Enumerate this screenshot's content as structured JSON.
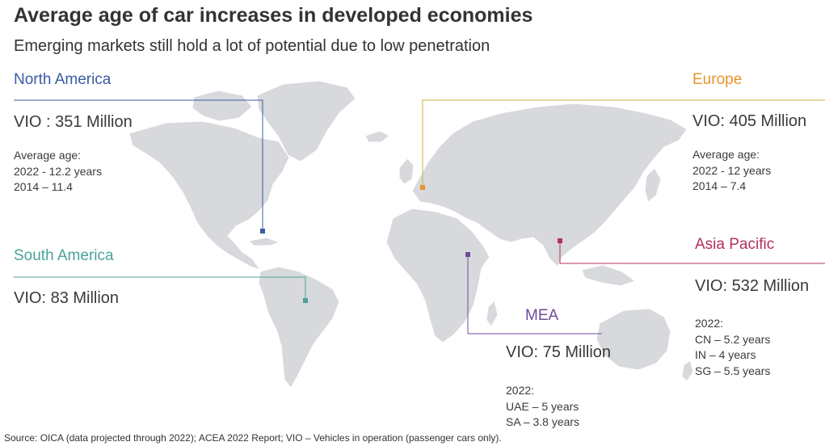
{
  "title": "Average age of car increases in developed economies",
  "subtitle": "Emerging markets still hold a lot of potential due to low penetration",
  "colors": {
    "land": "#d7d9dc",
    "north_america": "#3b5ba5",
    "europe": "#e8952e",
    "south_america": "#4aa39a",
    "asia_pacific": "#b5305a",
    "mea": "#6f4a9c",
    "connector_europe": "#c9b23c"
  },
  "regions": {
    "north_america": {
      "name": "North America",
      "vio": "VIO : 351 Million",
      "details": [
        "Average age:",
        "2022 - 12.2 years",
        "2014 – 11.4"
      ]
    },
    "europe": {
      "name": "Europe",
      "vio": "VIO: 405 Million",
      "details": [
        "Average age:",
        "2022 - 12 years",
        "2014 – 7.4"
      ]
    },
    "south_america": {
      "name": "South America",
      "vio": "VIO: 83 Million"
    },
    "asia_pacific": {
      "name": "Asia Pacific",
      "vio": "VIO: 532 Million",
      "details": [
        "2022:",
        "CN – 5.2 years",
        "IN – 4 years",
        "SG – 5.5 years"
      ]
    },
    "mea": {
      "name": "MEA",
      "vio": "VIO: 75 Million",
      "details": [
        "2022:",
        "UAE – 5 years",
        "SA – 3.8 years"
      ]
    }
  },
  "source": "Source: OICA (data projected through 2022); ACEA 2022 Report; VIO – Vehicles in operation (passenger cars only)."
}
